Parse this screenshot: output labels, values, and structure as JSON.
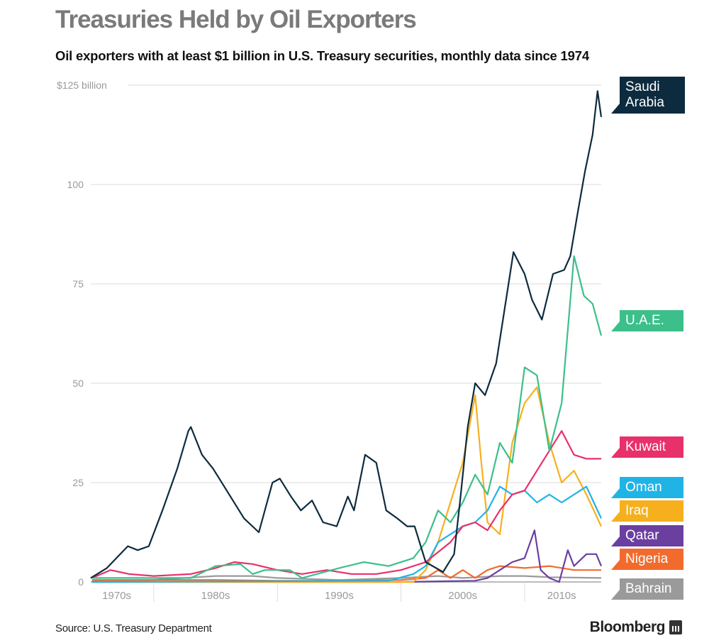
{
  "header": {
    "title": "Treasuries Held by Oil Exporters",
    "subtitle": "Oil exporters with at least $1 billion in U.S. Treasury securities,  monthly data since 1974"
  },
  "footer": {
    "source": "Source: U.S. Treasury Department",
    "logo": "Bloomberg"
  },
  "chart_data": {
    "type": "line",
    "title": "Treasuries Held by Oil Exporters",
    "ylabel": "$ billion",
    "ylim": [
      0,
      125
    ],
    "xlim": [
      1974.9,
      2016.2
    ],
    "yticks": [
      {
        "v": 0,
        "label": "0"
      },
      {
        "v": 25,
        "label": "25"
      },
      {
        "v": 50,
        "label": "50"
      },
      {
        "v": 75,
        "label": "75"
      },
      {
        "v": 100,
        "label": "100"
      },
      {
        "v": 125,
        "label": "$125 billion"
      }
    ],
    "xticks": [
      {
        "center": 1977,
        "label": "1970s"
      },
      {
        "center": 1985,
        "label": "1980s"
      },
      {
        "center": 1995,
        "label": "1990s"
      },
      {
        "center": 2005,
        "label": "2000s"
      },
      {
        "center": 2013,
        "label": "2010s"
      }
    ],
    "decade_dividers": [
      1980,
      1990,
      2000,
      2010
    ],
    "grid": true,
    "series": [
      {
        "name": "Bahrain",
        "color": "#9a9a9a",
        "x": [
          1975,
          1980,
          1985,
          1988,
          1990,
          1995,
          2000,
          2003,
          2005,
          2008,
          2010,
          2012,
          2016.2
        ],
        "y": [
          0.2,
          0.5,
          1.5,
          1.5,
          1,
          0.5,
          1,
          1.5,
          1,
          1.5,
          1.5,
          1.2,
          1
        ]
      },
      {
        "name": "Nigeria",
        "color": "#f26b2c",
        "x": [
          1975,
          1980,
          1985,
          1990,
          1995,
          2000,
          2002,
          2003,
          2004,
          2005,
          2006,
          2007,
          2008,
          2010,
          2012,
          2014,
          2016.2
        ],
        "y": [
          0.5,
          0.5,
          0.5,
          0.3,
          0.3,
          0.5,
          1,
          3,
          1,
          3,
          1,
          3,
          4,
          3.5,
          4,
          3,
          3
        ]
      },
      {
        "name": "Qatar",
        "color": "#6b3fa0",
        "x": [
          1975,
          2000,
          2006,
          2007,
          2008,
          2009,
          2010,
          2010.8,
          2011.3,
          2012,
          2012.8,
          2013.5,
          2014,
          2015,
          2015.8,
          2016.2
        ],
        "y": [
          0,
          0,
          0.3,
          1,
          3,
          5,
          6,
          13,
          3,
          1,
          0,
          8,
          4,
          7,
          7,
          4
        ]
      },
      {
        "name": "Iraq",
        "color": "#f6b01e",
        "x": [
          1975,
          2001,
          2002,
          2003,
          2004,
          2005,
          2006,
          2006.5,
          2007,
          2008,
          2009,
          2010,
          2011,
          2012,
          2013,
          2014,
          2015,
          2016.2
        ],
        "y": [
          0,
          0,
          3,
          10,
          20,
          30,
          47,
          30,
          15,
          12,
          35,
          45,
          49,
          35,
          25,
          28,
          22,
          14
        ]
      },
      {
        "name": "Oman",
        "color": "#20b4e6",
        "x": [
          1975,
          1999,
          2001,
          2002,
          2003,
          2004,
          2005,
          2006,
          2007,
          2008,
          2009,
          2010,
          2011,
          2012,
          2013,
          2014,
          2015,
          2016.2
        ],
        "y": [
          0,
          0.3,
          2,
          4,
          10,
          12,
          14,
          15,
          18,
          24,
          22,
          23,
          20,
          22,
          20,
          22,
          24,
          16
        ]
      },
      {
        "name": "Kuwait",
        "color": "#e8306b",
        "x": [
          1975,
          1976.5,
          1978,
          1980,
          1983,
          1985,
          1986.5,
          1988,
          1990,
          1992,
          1994,
          1996,
          1998,
          2000,
          2002,
          2004,
          2005,
          2006,
          2007,
          2008,
          2009,
          2010,
          2011,
          2012,
          2013,
          2014,
          2015,
          2016.2
        ],
        "y": [
          1,
          3,
          2,
          1.5,
          2,
          3.5,
          5,
          4.5,
          3,
          2,
          3,
          2,
          2,
          3,
          5,
          10,
          14,
          15,
          13,
          18,
          22,
          23,
          28,
          33,
          38,
          32,
          31,
          31
        ]
      },
      {
        "name": "U.A.E.",
        "color": "#3cbf8a",
        "x": [
          1975,
          1983,
          1985,
          1987,
          1988,
          1989,
          1991,
          1992,
          1995,
          1997,
          1999,
          2001,
          2002,
          2003,
          2004,
          2005,
          2006,
          2007,
          2008,
          2009,
          2010,
          2011,
          2012,
          2013,
          2014,
          2014.8,
          2015.5,
          2016.2
        ],
        "y": [
          1,
          1,
          4,
          4.5,
          2,
          3,
          3,
          1,
          3.5,
          5,
          4,
          6,
          10,
          18,
          15,
          20,
          27,
          22,
          35,
          30,
          54,
          52,
          33,
          45,
          82,
          72,
          70,
          62
        ]
      },
      {
        "name": "Saudi Arabia",
        "color": "#0d2b3e",
        "x": [
          1974.9,
          1976.2,
          1977.9,
          1978.7,
          1979.6,
          1980.7,
          1981.9,
          1982.8,
          1983,
          1983.9,
          1984.8,
          1985.9,
          1987.3,
          1988.5,
          1989.6,
          1990.2,
          1991.1,
          1991.9,
          1992.8,
          1993.7,
          1994.8,
          1995.7,
          1996.2,
          1997.1,
          1998,
          1998.8,
          1999.7,
          2000.5,
          2001.1,
          2002,
          2003.4,
          2004.3,
          2004.8,
          2005.4,
          2006,
          2006.8,
          2007.7,
          2008.6,
          2009.1,
          2010,
          2010.6,
          2011.4,
          2012.3,
          2013.2,
          2013.7,
          2014.3,
          2014.9,
          2015.5,
          2015.9,
          2016.2
        ],
        "y": [
          1,
          3.5,
          9,
          8,
          9,
          18,
          28.5,
          38,
          39,
          32,
          28.5,
          23,
          16,
          12.5,
          25,
          26,
          21.5,
          18,
          20.5,
          15,
          14,
          21.5,
          18,
          32,
          30,
          18,
          16,
          14,
          14,
          5,
          2.5,
          7,
          21,
          39,
          50,
          47,
          55,
          73,
          83,
          77.5,
          71,
          66,
          77.5,
          78.5,
          82,
          93,
          103.5,
          112.5,
          123.5,
          117
        ]
      }
    ]
  },
  "labels": [
    {
      "name": "Saudi Arabia",
      "text": "Saudi Arabia",
      "color": "#0d2b3e"
    },
    {
      "name": "U.A.E.",
      "text": "U.A.E.",
      "color": "#3cbf8a"
    },
    {
      "name": "Kuwait",
      "text": "Kuwait",
      "color": "#e8306b"
    },
    {
      "name": "Oman",
      "text": "Oman",
      "color": "#20b4e6"
    },
    {
      "name": "Iraq",
      "text": "Iraq",
      "color": "#f6b01e"
    },
    {
      "name": "Qatar",
      "text": "Qatar",
      "color": "#6b3fa0"
    },
    {
      "name": "Nigeria",
      "text": "Nigeria",
      "color": "#f26b2c"
    },
    {
      "name": "Bahrain",
      "text": "Bahrain",
      "color": "#9a9a9a"
    }
  ]
}
